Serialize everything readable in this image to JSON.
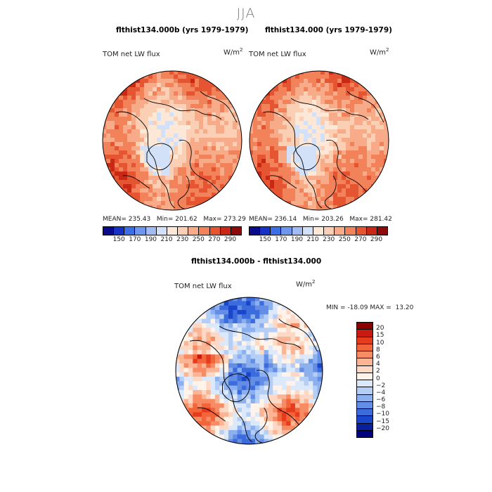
{
  "season": "JJA",
  "chart_data": [
    {
      "type": "heatmap",
      "title": "flthist134.000b (yrs 1979-1979)",
      "variable": "TOM net LW flux",
      "units": "W/m",
      "units_exp": "2",
      "stats": {
        "mean_label": "MEAN=",
        "mean": "235.43",
        "min_label": "Min=",
        "min": "201.62",
        "max_label": "Max=",
        "max": "273.29"
      },
      "colorbar_ticks": [
        "150",
        "170",
        "190",
        "210",
        "230",
        "250",
        "270",
        "290"
      ]
    },
    {
      "type": "heatmap",
      "title": "flthist134.000 (yrs 1979-1979)",
      "variable": "TOM net LW flux",
      "units": "W/m",
      "units_exp": "2",
      "stats": {
        "mean_label": "MEAN=",
        "mean": "236.14",
        "min_label": "Min=",
        "min": "203.26",
        "max_label": "Max=",
        "max": "281.42"
      },
      "colorbar_ticks": [
        "150",
        "170",
        "190",
        "210",
        "230",
        "250",
        "270",
        "290"
      ]
    },
    {
      "type": "heatmap",
      "title": "flthist134.000b - flthist134.000",
      "variable": "TOM net LW flux",
      "units": "W/m",
      "units_exp": "2",
      "stats": {
        "min_label": "MIN =",
        "min": "-18.09",
        "max_label": "MAX =",
        "max": "13.20"
      },
      "colorbar_ticks": [
        "20",
        "15",
        "10",
        "8",
        "6",
        "4",
        "2",
        "0",
        "-2",
        "-4",
        "-6",
        "-8",
        "-10",
        "-15",
        "-20"
      ]
    }
  ],
  "colors": {
    "seq": [
      "#0a0a8c",
      "#1632c8",
      "#3c6ee6",
      "#6e96ec",
      "#a0bcf2",
      "#d2e0f8",
      "#fde8d8",
      "#fbcfb4",
      "#f7ab88",
      "#f2825a",
      "#e65532",
      "#c82814",
      "#8c0a0a"
    ],
    "div": [
      "#8c0000",
      "#c81a10",
      "#e63c1e",
      "#f2643a",
      "#f78c64",
      "#fbb494",
      "#fdd8c4",
      "#fff3ea",
      "#dce9fb",
      "#b4cef5",
      "#8cb0ee",
      "#648ee6",
      "#3c6cdc",
      "#1a46cc",
      "#0a1ea0",
      "#000080"
    ]
  }
}
